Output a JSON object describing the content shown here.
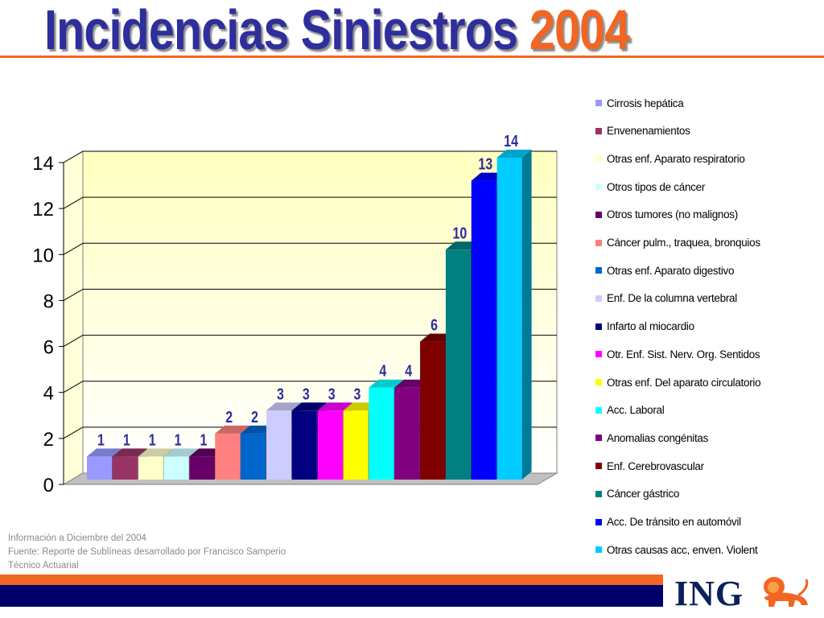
{
  "title": {
    "text": "Incidencias Siniestros",
    "year": "2004"
  },
  "chart_data": {
    "type": "bar",
    "categories": [
      "Cirrosis hepática",
      "Envenenamientos",
      "Otras enf. Aparato respiratorio",
      "Otros tipos de cáncer",
      "Otros tumores (no malignos)",
      "Cáncer pulm., traquea, bronquios",
      "Otras enf. Aparato digestivo",
      "Enf. De la columna vertebral",
      "Infarto al miocardio",
      "Otr. Enf. Sist. Nerv. Org. Sentidos",
      "Otras enf. Del aparato circulatorio",
      "Acc. Laboral",
      "Anomalias congénitas",
      "Enf. Cerebrovascular",
      "Cáncer gástrico",
      "Acc. De tránsito en automóvil",
      "Otras causas acc, enven. Violent"
    ],
    "values": [
      1,
      1,
      1,
      1,
      1,
      2,
      2,
      3,
      3,
      3,
      3,
      4,
      4,
      6,
      10,
      13,
      14
    ],
    "data_labels": [
      "1",
      "1",
      "1",
      "1",
      "1",
      "2",
      "2",
      "3",
      "3",
      "3",
      "3",
      "4",
      "4",
      "6",
      "10",
      "13",
      "14"
    ],
    "colors": [
      "#9999ff",
      "#993366",
      "#ffffcc",
      "#ccffff",
      "#660066",
      "#ff8080",
      "#0066cc",
      "#ccccff",
      "#000080",
      "#ff00ff",
      "#ffff00",
      "#00ffff",
      "#800080",
      "#800000",
      "#008080",
      "#0000ff",
      "#00ccff"
    ],
    "ylim": [
      0,
      14
    ],
    "yticks": [
      "0",
      "2",
      "4",
      "6",
      "8",
      "10",
      "12",
      "14"
    ],
    "grid": true,
    "legend_position": "right",
    "label_color": "#2e2e9c"
  },
  "notes": [
    "Información a Diciembre del 2004",
    "Fuente: Reporte de Sublíneas desarrollado por Francisco Samperio",
    "Técnico Actuarial"
  ],
  "logo": {
    "text": "ING",
    "icon": "lion-icon"
  }
}
